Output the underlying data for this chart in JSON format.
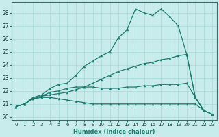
{
  "xlabel": "Humidex (Indice chaleur)",
  "background_color": "#c8ecec",
  "grid_color": "#a8d8d8",
  "line_color": "#1a7a6e",
  "tick_label_color": "#1a3a3a",
  "xlim": [
    -0.5,
    23.5
  ],
  "ylim": [
    19.8,
    28.8
  ],
  "xticks": [
    0,
    1,
    2,
    3,
    4,
    5,
    6,
    7,
    8,
    9,
    10,
    11,
    12,
    13,
    14,
    15,
    16,
    17,
    18,
    19,
    20,
    21,
    22,
    23
  ],
  "yticks": [
    20,
    21,
    22,
    23,
    24,
    25,
    26,
    27,
    28
  ],
  "line1_x": [
    0,
    1,
    2,
    3,
    4,
    5,
    6,
    7,
    8,
    9,
    10,
    11,
    12,
    13,
    14,
    15,
    16,
    17,
    18,
    19,
    20,
    21,
    22,
    23
  ],
  "line1_y": [
    20.8,
    21.0,
    21.5,
    21.7,
    22.2,
    22.5,
    22.6,
    23.2,
    23.9,
    24.3,
    24.7,
    25.0,
    26.1,
    26.7,
    28.3,
    28.0,
    27.8,
    28.3,
    27.7,
    27.0,
    24.8,
    21.5,
    20.5,
    20.2
  ],
  "line2_x": [
    0,
    1,
    2,
    3,
    4,
    5,
    6,
    7,
    8,
    9,
    10,
    11,
    12,
    13,
    14,
    15,
    16,
    17,
    18,
    19,
    20,
    21,
    22,
    23
  ],
  "line2_y": [
    20.8,
    21.0,
    21.4,
    21.6,
    21.7,
    21.8,
    21.9,
    22.1,
    22.3,
    22.6,
    22.9,
    23.2,
    23.5,
    23.7,
    23.9,
    24.1,
    24.2,
    24.4,
    24.5,
    24.7,
    24.8,
    21.5,
    20.5,
    20.2
  ],
  "line3_x": [
    0,
    1,
    2,
    3,
    4,
    5,
    6,
    7,
    8,
    9,
    10,
    11,
    12,
    13,
    14,
    15,
    16,
    17,
    18,
    19,
    20,
    21,
    22,
    23
  ],
  "line3_y": [
    20.8,
    21.0,
    21.5,
    21.6,
    21.9,
    22.0,
    22.2,
    22.3,
    22.3,
    22.3,
    22.2,
    22.2,
    22.2,
    22.3,
    22.3,
    22.4,
    22.4,
    22.5,
    22.5,
    22.5,
    22.6,
    21.5,
    20.5,
    20.2
  ],
  "line4_x": [
    0,
    1,
    2,
    3,
    4,
    5,
    6,
    7,
    8,
    9,
    10,
    11,
    12,
    13,
    14,
    15,
    16,
    17,
    18,
    19,
    20,
    21,
    22,
    23
  ],
  "line4_y": [
    20.8,
    21.0,
    21.4,
    21.5,
    21.5,
    21.4,
    21.3,
    21.2,
    21.1,
    21.0,
    21.0,
    21.0,
    21.0,
    21.0,
    21.0,
    21.0,
    21.0,
    21.0,
    21.0,
    21.0,
    21.0,
    21.0,
    20.5,
    20.2
  ]
}
